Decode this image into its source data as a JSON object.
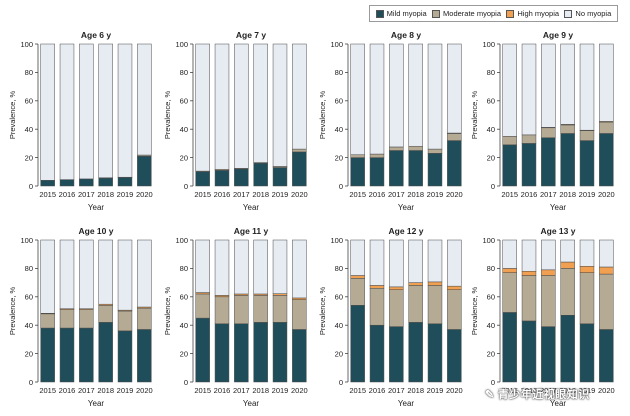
{
  "legend": {
    "items": [
      {
        "label": "Mild myopia",
        "color": "#1f4e5a"
      },
      {
        "label": "Moderate myopia",
        "color": "#b5aa93"
      },
      {
        "label": "High myopia",
        "color": "#f0a050"
      },
      {
        "label": "No myopia",
        "color": "#e6ecf2"
      }
    ]
  },
  "watermark": "青少年近视眼知识",
  "chart_data": [
    {
      "type": "bar",
      "stacked": true,
      "title": "Age 6 y",
      "xlabel": "Year",
      "ylabel": "Prevalence, %",
      "ylim": [
        0,
        100
      ],
      "yticks": [
        0,
        20,
        40,
        60,
        80,
        100
      ],
      "categories": [
        "2015",
        "2016",
        "2017",
        "2018",
        "2019",
        "2020"
      ],
      "series": [
        {
          "name": "Mild myopia",
          "values": [
            4,
            4.5,
            5,
            5.5,
            6,
            21
          ]
        },
        {
          "name": "Moderate myopia",
          "values": [
            0,
            0,
            0,
            0.3,
            0.2,
            0.8
          ]
        },
        {
          "name": "High myopia",
          "values": [
            0,
            0,
            0,
            0,
            0,
            0
          ]
        },
        {
          "name": "No myopia",
          "values": [
            96,
            95.5,
            95,
            94.2,
            93.8,
            78.2
          ]
        }
      ]
    },
    {
      "type": "bar",
      "stacked": true,
      "title": "Age 7 y",
      "xlabel": "Year",
      "ylabel": "Prevalence, %",
      "ylim": [
        0,
        100
      ],
      "yticks": [
        0,
        20,
        40,
        60,
        80,
        100
      ],
      "categories": [
        "2015",
        "2016",
        "2017",
        "2018",
        "2019",
        "2020"
      ],
      "series": [
        {
          "name": "Mild myopia",
          "values": [
            10,
            11,
            12,
            16,
            13,
            24
          ]
        },
        {
          "name": "Moderate myopia",
          "values": [
            0.5,
            0.8,
            0.5,
            0.5,
            0.8,
            2
          ]
        },
        {
          "name": "High myopia",
          "values": [
            0,
            0,
            0,
            0,
            0,
            0
          ]
        },
        {
          "name": "No myopia",
          "values": [
            89.5,
            88.2,
            87.5,
            83.5,
            86.2,
            74
          ]
        }
      ]
    },
    {
      "type": "bar",
      "stacked": true,
      "title": "Age 8 y",
      "xlabel": "Year",
      "ylabel": "Prevalence, %",
      "ylim": [
        0,
        100
      ],
      "yticks": [
        0,
        20,
        40,
        60,
        80,
        100
      ],
      "categories": [
        "2015",
        "2016",
        "2017",
        "2018",
        "2019",
        "2020"
      ],
      "series": [
        {
          "name": "Mild myopia",
          "values": [
            20,
            20,
            25,
            25,
            23,
            32
          ]
        },
        {
          "name": "Moderate myopia",
          "values": [
            2,
            2.5,
            2.5,
            3,
            3,
            5
          ]
        },
        {
          "name": "High myopia",
          "values": [
            0,
            0,
            0,
            0,
            0,
            0.3
          ]
        },
        {
          "name": "No myopia",
          "values": [
            78,
            77.5,
            72.5,
            72,
            74,
            62.7
          ]
        }
      ]
    },
    {
      "type": "bar",
      "stacked": true,
      "title": "Age 9 y",
      "xlabel": "Year",
      "ylabel": "Prevalence, %",
      "ylim": [
        0,
        100
      ],
      "yticks": [
        0,
        20,
        40,
        60,
        80,
        100
      ],
      "categories": [
        "2015",
        "2016",
        "2017",
        "2018",
        "2019",
        "2020"
      ],
      "series": [
        {
          "name": "Mild myopia",
          "values": [
            29,
            30,
            34,
            37,
            32,
            37
          ]
        },
        {
          "name": "Moderate myopia",
          "values": [
            6,
            6,
            7,
            6,
            7,
            8
          ]
        },
        {
          "name": "High myopia",
          "values": [
            0,
            0,
            0.3,
            0.4,
            0.3,
            0.5
          ]
        },
        {
          "name": "No myopia",
          "values": [
            65,
            64,
            58.7,
            56.6,
            60.7,
            54.5
          ]
        }
      ]
    },
    {
      "type": "bar",
      "stacked": true,
      "title": "Age 10 y",
      "xlabel": "Year",
      "ylabel": "Prevalence, %",
      "ylim": [
        0,
        100
      ],
      "yticks": [
        0,
        20,
        40,
        60,
        80,
        100
      ],
      "categories": [
        "2015",
        "2016",
        "2017",
        "2018",
        "2019",
        "2020"
      ],
      "series": [
        {
          "name": "Mild myopia",
          "values": [
            38,
            38,
            38,
            42,
            36,
            37
          ]
        },
        {
          "name": "Moderate myopia",
          "values": [
            10,
            13,
            13,
            12,
            14,
            15
          ]
        },
        {
          "name": "High myopia",
          "values": [
            0.4,
            0.6,
            0.6,
            0.8,
            0.6,
            0.8
          ]
        },
        {
          "name": "No myopia",
          "values": [
            51.6,
            48.4,
            48.4,
            45.2,
            49.4,
            47.2
          ]
        }
      ]
    },
    {
      "type": "bar",
      "stacked": true,
      "title": "Age 11 y",
      "xlabel": "Year",
      "ylabel": "Prevalence, %",
      "ylim": [
        0,
        100
      ],
      "yticks": [
        0,
        20,
        40,
        60,
        80,
        100
      ],
      "categories": [
        "2015",
        "2016",
        "2017",
        "2018",
        "2019",
        "2020"
      ],
      "series": [
        {
          "name": "Mild myopia",
          "values": [
            45,
            41,
            41,
            42,
            42,
            37
          ]
        },
        {
          "name": "Moderate myopia",
          "values": [
            17,
            19,
            20,
            19,
            19,
            21
          ]
        },
        {
          "name": "High myopia",
          "values": [
            1,
            1,
            1,
            1,
            1.2,
            1.2
          ]
        },
        {
          "name": "No myopia",
          "values": [
            37,
            39,
            38,
            38,
            37.8,
            40.8
          ]
        }
      ]
    },
    {
      "type": "bar",
      "stacked": true,
      "title": "Age 12 y",
      "xlabel": "Year",
      "ylabel": "Prevalence, %",
      "ylim": [
        0,
        100
      ],
      "yticks": [
        0,
        20,
        40,
        60,
        80,
        100
      ],
      "categories": [
        "2015",
        "2016",
        "2017",
        "2018",
        "2019",
        "2020"
      ],
      "series": [
        {
          "name": "Mild myopia",
          "values": [
            54,
            40,
            39,
            42,
            41,
            37
          ]
        },
        {
          "name": "Moderate myopia",
          "values": [
            19,
            26,
            26,
            26,
            27,
            28
          ]
        },
        {
          "name": "High myopia",
          "values": [
            2,
            2,
            2,
            2,
            2.5,
            2.5
          ]
        },
        {
          "name": "No myopia",
          "values": [
            25,
            32,
            33,
            30,
            29.5,
            32.5
          ]
        }
      ]
    },
    {
      "type": "bar",
      "stacked": true,
      "title": "Age 13 y",
      "xlabel": "Year",
      "ylabel": "Prevalence, %",
      "ylim": [
        0,
        100
      ],
      "yticks": [
        0,
        20,
        40,
        60,
        80,
        100
      ],
      "categories": [
        "2015",
        "2016",
        "2017",
        "2018",
        "2019",
        "2020"
      ],
      "series": [
        {
          "name": "Mild myopia",
          "values": [
            49,
            43,
            39,
            47,
            41,
            37
          ]
        },
        {
          "name": "Moderate myopia",
          "values": [
            28,
            32,
            36,
            33,
            36,
            39
          ]
        },
        {
          "name": "High myopia",
          "values": [
            3,
            3,
            4,
            4.5,
            4.5,
            5
          ]
        },
        {
          "name": "No myopia",
          "values": [
            20,
            22,
            21,
            15.5,
            18.5,
            19
          ]
        }
      ]
    }
  ]
}
